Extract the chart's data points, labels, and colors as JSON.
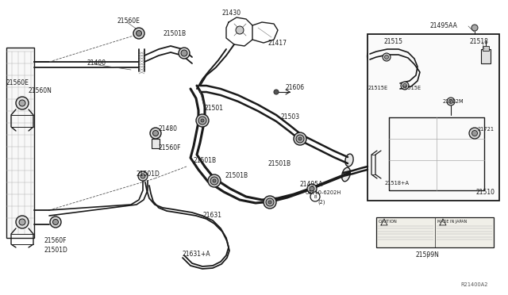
{
  "bg_color": "#ffffff",
  "line_color": "#1a1a1a",
  "label_color": "#1a1a1a",
  "fs": 5.5,
  "fs_small": 4.8,
  "diagram_code": "R21400A2",
  "colors": {
    "bg": "#ffffff",
    "lc": "#1a1a1a",
    "gray": "#888888",
    "lgray": "#cccccc",
    "inset_bg": "#ffffff"
  },
  "labels_main": [
    [
      "21560E",
      155,
      22
    ],
    [
      "21400",
      115,
      77
    ],
    [
      "21560E",
      10,
      106
    ],
    [
      "21560N",
      38,
      116
    ],
    [
      "21501B",
      207,
      40
    ],
    [
      "21430",
      280,
      13
    ],
    [
      "21417",
      336,
      55
    ],
    [
      "21606",
      368,
      100
    ],
    [
      "21501",
      247,
      135
    ],
    [
      "21480",
      205,
      160
    ],
    [
      "21560F",
      205,
      186
    ],
    [
      "21501B",
      245,
      200
    ],
    [
      "21501D",
      178,
      218
    ],
    [
      "21501B",
      285,
      220
    ],
    [
      "21503",
      355,
      148
    ],
    [
      "21501B",
      340,
      205
    ],
    [
      "21495A",
      375,
      232
    ],
    [
      "08110-6202H",
      383,
      244
    ],
    [
      "(2)",
      400,
      254
    ],
    [
      "21631",
      255,
      270
    ],
    [
      "21631+A",
      228,
      320
    ],
    [
      "21560F",
      55,
      302
    ],
    [
      "21501D",
      60,
      313
    ]
  ],
  "labels_inset": [
    [
      "21495AA",
      544,
      30
    ],
    [
      "21515",
      490,
      52
    ],
    [
      "21518",
      590,
      52
    ],
    [
      "21515E",
      468,
      112
    ],
    [
      "21515E",
      511,
      112
    ],
    [
      "21712M",
      560,
      130
    ],
    [
      "21721",
      600,
      165
    ],
    [
      "21518+A",
      490,
      232
    ],
    [
      "21510",
      600,
      240
    ],
    [
      "21599N",
      539,
      320
    ]
  ]
}
